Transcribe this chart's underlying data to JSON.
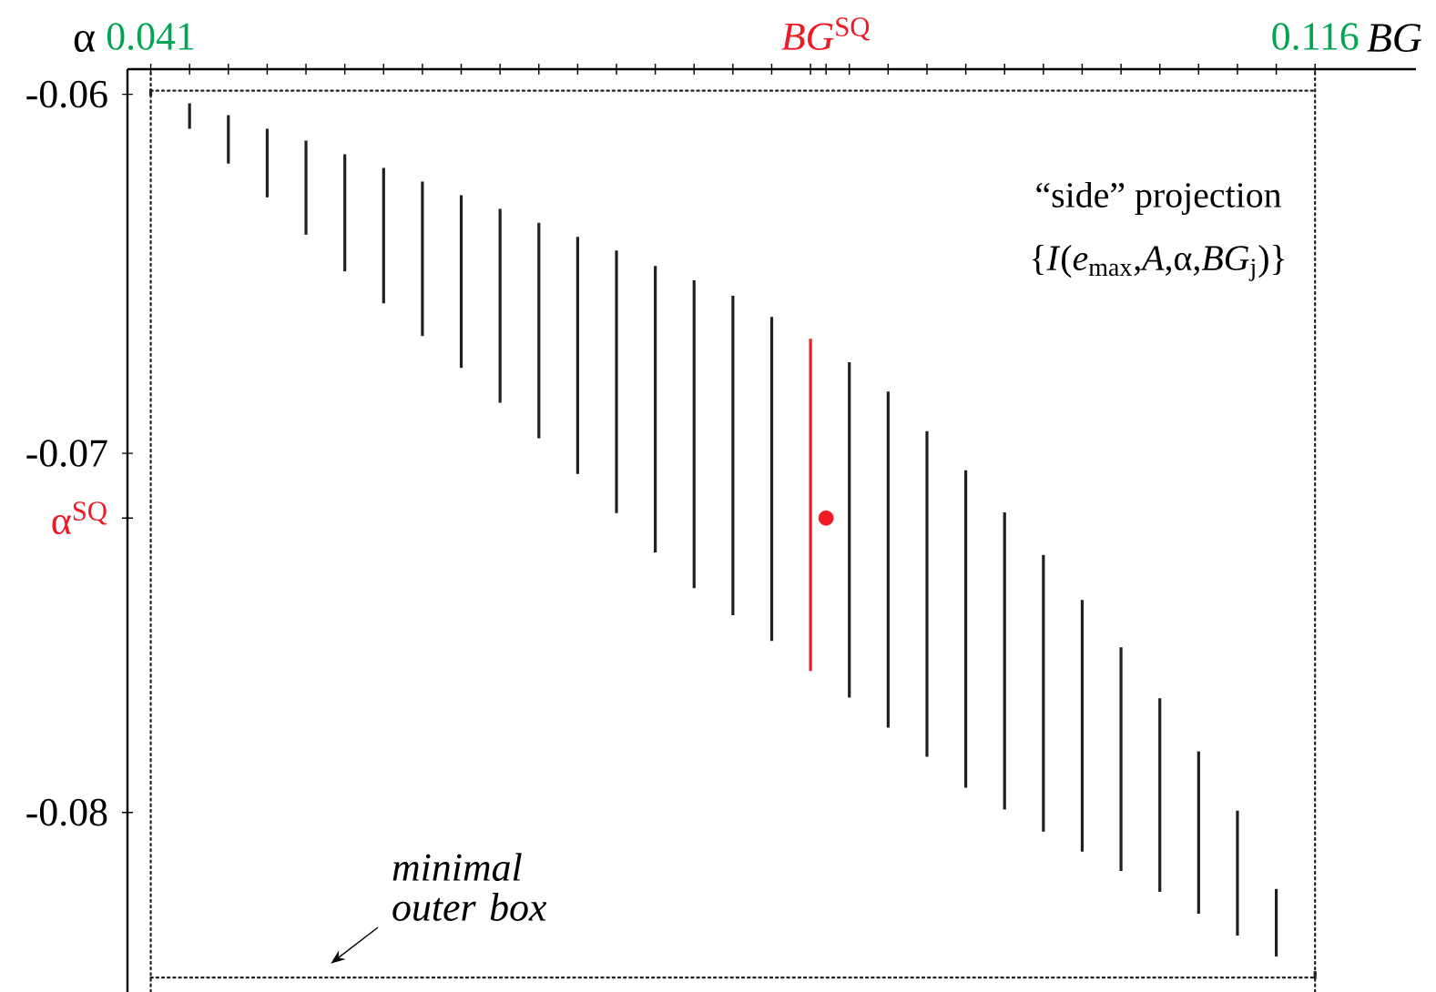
{
  "chart_data": {
    "type": "bar",
    "xlabel": "BG",
    "ylabel": "α",
    "xlim": [
      0.0395,
      0.1225
    ],
    "ylim": [
      -0.085,
      -0.0593
    ],
    "xticks": [
      {
        "value": 0.041,
        "label": "0.041"
      },
      {
        "value": 0.0435,
        "label": null
      },
      {
        "value": 0.046,
        "label": null
      },
      {
        "value": 0.0485,
        "label": null
      },
      {
        "value": 0.051,
        "label": null
      },
      {
        "value": 0.0535,
        "label": null
      },
      {
        "value": 0.056,
        "label": null
      },
      {
        "value": 0.0585,
        "label": null
      },
      {
        "value": 0.061,
        "label": null
      },
      {
        "value": 0.0635,
        "label": null
      },
      {
        "value": 0.066,
        "label": null
      },
      {
        "value": 0.0685,
        "label": null
      },
      {
        "value": 0.071,
        "label": null
      },
      {
        "value": 0.0735,
        "label": null
      },
      {
        "value": 0.076,
        "label": null
      },
      {
        "value": 0.0785,
        "label": null
      },
      {
        "value": 0.081,
        "label": null
      },
      {
        "value": 0.0835,
        "label": null
      },
      {
        "value": 0.0845,
        "label": "*BG*$^{SQ}$"
      },
      {
        "value": 0.086,
        "label": null
      },
      {
        "value": 0.0885,
        "label": null
      },
      {
        "value": 0.091,
        "label": null
      },
      {
        "value": 0.0935,
        "label": null
      },
      {
        "value": 0.096,
        "label": null
      },
      {
        "value": 0.0985,
        "label": null
      },
      {
        "value": 0.101,
        "label": null
      },
      {
        "value": 0.1035,
        "label": null
      },
      {
        "value": 0.106,
        "label": null
      },
      {
        "value": 0.1085,
        "label": null
      },
      {
        "value": 0.111,
        "label": null
      },
      {
        "value": 0.1135,
        "label": null
      },
      {
        "value": 0.116,
        "label": "0.116"
      }
    ],
    "yticks": [
      -0.06,
      -0.07,
      -0.08,
      {
        "value": -0.0718,
        "label": "α$^{SQ}$"
      }
    ],
    "series": [
      {
        "x": [
          0.041,
          0.0435,
          0.046,
          0.0485,
          0.051,
          0.0535,
          0.056,
          0.0585,
          0.061,
          0.0635,
          0.066,
          0.0685,
          0.071,
          0.0735,
          0.076,
          0.0785,
          0.081,
          0.0835,
          0.086,
          0.0885,
          0.091,
          0.0935,
          0.096,
          0.0985,
          0.101,
          0.1035,
          0.106,
          0.1085,
          0.111,
          0.1135,
          0.116
        ],
        "base": [
          -0.06005,
          -0.06096,
          -0.06193,
          -0.06287,
          -0.06391,
          -0.06493,
          -0.06582,
          -0.06673,
          -0.06762,
          -0.06859,
          -0.06958,
          -0.07057,
          -0.07166,
          -0.07276,
          -0.07375,
          -0.07451,
          -0.07522,
          -0.07606,
          -0.0768,
          -0.07764,
          -0.07845,
          -0.07931,
          -0.07992,
          -0.08053,
          -0.08109,
          -0.08163,
          -0.08221,
          -0.08282,
          -0.08343,
          -0.08401,
          -0.08463
        ],
        "values": [
          0.0002,
          0.00071,
          0.00135,
          0.00191,
          0.00262,
          0.00326,
          0.00377,
          0.0043,
          0.00481,
          0.0054,
          0.006,
          0.0066,
          0.00731,
          0.00798,
          0.00857,
          0.0089,
          0.00902,
          0.00925,
          0.00934,
          0.00936,
          0.00907,
          0.00884,
          0.00828,
          0.0077,
          0.00701,
          0.00623,
          0.00539,
          0.00452,
          0.00348,
          0.00188,
          0.00021
        ],
        "colors": [
          "#231f20",
          "#231f20",
          "#231f20",
          "#231f20",
          "#231f20",
          "#231f20",
          "#231f20",
          "#231f20",
          "#231f20",
          "#231f20",
          "#231f20",
          "#231f20",
          "#231f20",
          "#231f20",
          "#231f20",
          "#231f20",
          "#231f20",
          "#ed1c24",
          "#231f20",
          "#231f20",
          "#231f20",
          "#231f20",
          "#231f20",
          "#231f20",
          "#231f20",
          "#231f20",
          "#231f20",
          "#231f20",
          "#231f20",
          "#231f20",
          "#231f20"
        ]
      },
      {
        "type": "scatter",
        "x": [
          0.0845
        ],
        "values": [
          -0.0718
        ],
        "color": "#ed1c24",
        "marker": "circle"
      },
      {
        "type": "line",
        "x": [
          0.041,
          0.116
        ],
        "values": [
          -0.0599,
          -0.0599
        ],
        "color": "#231f20",
        "line_style": "dotted"
      },
      {
        "type": "line",
        "x": [
          0.041,
          0.116
        ],
        "values": [
          -0.0846,
          -0.0846
        ],
        "color": "#231f20",
        "line_style": "dotted"
      }
    ],
    "ref_lines": [
      {
        "axis": "x",
        "value": 0.041,
        "color": "#231f20",
        "line_style": "dotted"
      },
      {
        "axis": "x",
        "value": 0.116,
        "color": "#231f20",
        "line_style": "dotted"
      }
    ],
    "annotations": [
      "“side” projection",
      "{*I*(*e*$_{max}$,*A*,α,*BG*$_{j}$)}",
      "minimal outer box"
    ]
  }
}
